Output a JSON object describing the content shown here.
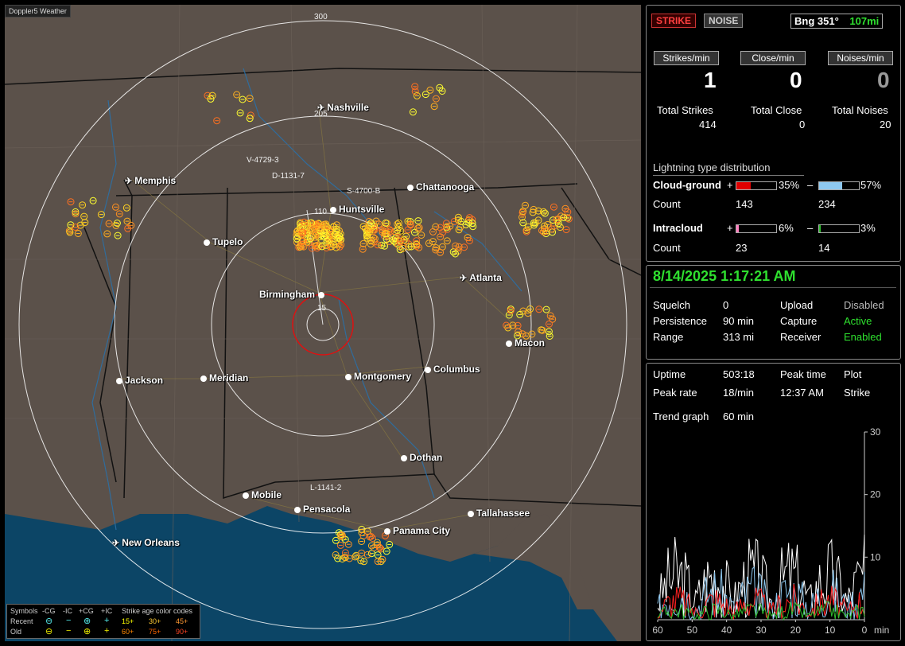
{
  "app": {
    "title": "Doppler5 Weather"
  },
  "map": {
    "ring_labels": {
      "r300": "300",
      "r205": "205",
      "r110": "110",
      "r15": "15"
    },
    "cities": [
      {
        "name": "Nashville",
        "kind": "airport"
      },
      {
        "name": "Memphis",
        "kind": "airport"
      },
      {
        "name": "Chattanooga",
        "kind": "city"
      },
      {
        "name": "Huntsville",
        "kind": "city"
      },
      {
        "name": "Tupelo",
        "kind": "city"
      },
      {
        "name": "Atlanta",
        "kind": "airport"
      },
      {
        "name": "Birmingham",
        "kind": "city"
      },
      {
        "name": "Macon",
        "kind": "city"
      },
      {
        "name": "Jackson",
        "kind": "city"
      },
      {
        "name": "Meridian",
        "kind": "city"
      },
      {
        "name": "Montgomery",
        "kind": "city"
      },
      {
        "name": "Columbus",
        "kind": "city"
      },
      {
        "name": "Dothan",
        "kind": "city"
      },
      {
        "name": "Mobile",
        "kind": "city"
      },
      {
        "name": "Pensacola",
        "kind": "city"
      },
      {
        "name": "Tallahassee",
        "kind": "city"
      },
      {
        "name": "Panama City",
        "kind": "city"
      },
      {
        "name": "New Orleans",
        "kind": "airport"
      }
    ],
    "storm_labels": [
      "V-4729-3",
      "D-1131-7",
      "S-4700-B",
      "L-1141-2"
    ],
    "legend": {
      "symbols_label": "Symbols",
      "cols": [
        "-CG",
        "-IC",
        "+CG",
        "+IC"
      ],
      "age_label": "Strike age color codes",
      "recent_label": "Recent",
      "old_label": "Old",
      "recent_ages": [
        "15+",
        "30+",
        "45+"
      ],
      "old_ages": [
        "60+",
        "75+",
        "90+"
      ]
    }
  },
  "panel": {
    "strike_btn": "STRIKE",
    "noise_btn": "NOISE",
    "bearing_label": "Bng 351°",
    "bearing_dist": "107mi",
    "rate_headers": [
      "Strikes/min",
      "Close/min",
      "Noises/min"
    ],
    "rates": [
      "1",
      "0",
      "0"
    ],
    "total_labels": [
      "Total Strikes",
      "Total Close",
      "Total Noises"
    ],
    "totals": [
      "414",
      "0",
      "20"
    ],
    "dist_title": "Lightning type distribution",
    "cg_label": "Cloud-ground",
    "cg_pos_sign": "+",
    "cg_pos_pct": "35%",
    "cg_neg_sign": "–",
    "cg_neg_pct": "57%",
    "count_label": "Count",
    "cg_pos_count": "143",
    "cg_neg_count": "234",
    "ic_label": "Intracloud",
    "ic_pos_sign": "+",
    "ic_pos_pct": "6%",
    "ic_neg_sign": "–",
    "ic_neg_pct": "3%",
    "ic_pos_count": "23",
    "ic_neg_count": "14",
    "bar_levels": {
      "cg_pos": 0.35,
      "cg_neg": 0.57,
      "ic_pos": 0.06,
      "ic_neg": 0.03
    },
    "datetime": "8/14/2025 1:17:21 AM",
    "squelch_label": "Squelch",
    "squelch": "0",
    "persistence_label": "Persistence",
    "persistence": "90 min",
    "range_label": "Range",
    "range": "313 mi",
    "upload_label": "Upload",
    "upload": "Disabled",
    "capture_label": "Capture",
    "capture": "Active",
    "receiver_label": "Receiver",
    "receiver": "Enabled",
    "uptime_label": "Uptime",
    "uptime": "503:18",
    "peaktime_label": "Peak time",
    "plot_label": "Plot",
    "peakrate_label": "Peak rate",
    "peakrate": "18/min",
    "peaktime": "12:37 AM",
    "plot": "Strike",
    "trend_label": "Trend graph",
    "trend": "60 min"
  },
  "trend_chart": {
    "y_ticks": [
      "30",
      "20",
      "10"
    ],
    "x_ticks": [
      "60",
      "50",
      "40",
      "30",
      "20",
      "10",
      "0"
    ],
    "x_unit": "min"
  },
  "colors": {
    "accent_green": "#2fe02f",
    "strike_red": "#ff3030",
    "ic_blue": "#8ec8f0"
  }
}
